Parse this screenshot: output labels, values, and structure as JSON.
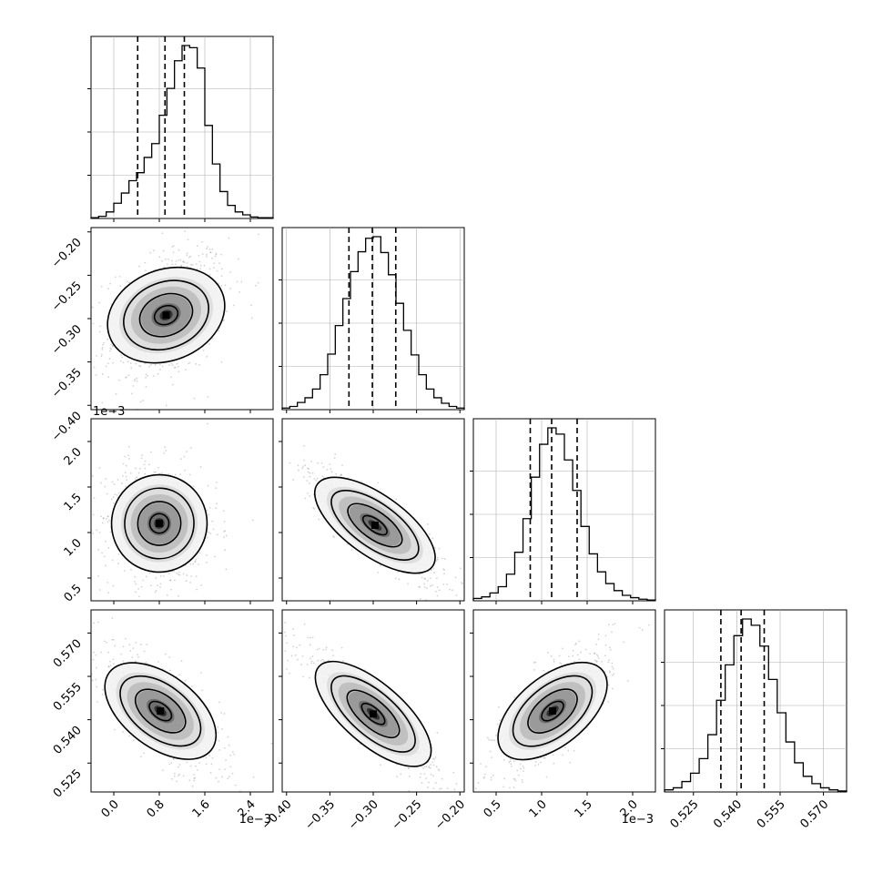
{
  "chart_data": {
    "type": "corner",
    "n_params": 4,
    "params": [
      {
        "name": "",
        "range": [
          -0.4,
          2.8
        ],
        "scale_label": "1e−3",
        "ticks": [
          "0.0",
          "0.8",
          "1.6",
          "2.4"
        ],
        "tick_values": [
          0.0,
          0.8,
          1.6,
          2.4
        ],
        "hist": [
          1,
          3,
          9,
          21,
          35,
          52,
          63,
          84,
          103,
          142,
          179,
          217,
          238,
          235,
          207,
          128,
          75,
          37,
          18,
          9,
          5,
          2,
          1,
          1
        ],
        "quantiles": [
          0.42,
          0.9,
          1.24
        ]
      },
      {
        "name": "",
        "range": [
          -0.405,
          -0.195
        ],
        "ticks": [
          "−0.40",
          "−0.35",
          "−0.30",
          "−0.25",
          "−0.20"
        ],
        "tick_values": [
          -0.4,
          -0.35,
          -0.3,
          -0.25,
          -0.2
        ],
        "hist": [
          2,
          4,
          9,
          15,
          26,
          44,
          70,
          106,
          140,
          174,
          199,
          216,
          218,
          198,
          170,
          134,
          100,
          69,
          44,
          26,
          15,
          8,
          4,
          2
        ],
        "quantiles": [
          -0.328,
          -0.301,
          -0.274
        ]
      },
      {
        "name": "",
        "range": [
          0.25,
          2.25
        ],
        "scale_label": "1e−3",
        "ticks": [
          "0.5",
          "1.0",
          "1.5",
          "2.0"
        ],
        "tick_values": [
          0.5,
          1.0,
          1.5,
          2.0
        ],
        "hist": [
          3,
          5,
          10,
          18,
          34,
          62,
          105,
          158,
          200,
          221,
          213,
          180,
          141,
          95,
          60,
          37,
          22,
          13,
          7,
          4,
          2,
          1
        ],
        "quantiles": [
          0.875,
          1.11,
          1.39
        ]
      },
      {
        "name": "",
        "range": [
          0.515,
          0.578
        ],
        "ticks": [
          "0.525",
          "0.540",
          "0.555",
          "0.570"
        ],
        "tick_values": [
          0.525,
          0.54,
          0.555,
          0.57
        ],
        "hist": [
          2,
          4,
          10,
          18,
          32,
          55,
          88,
          122,
          150,
          166,
          160,
          140,
          108,
          76,
          48,
          28,
          15,
          8,
          4,
          2,
          1
        ],
        "quantiles": [
          0.5345,
          0.5415,
          0.5495
        ]
      }
    ],
    "pair_ticks": {
      "rows": [
        null,
        {
          "labels": [
            "−0.20",
            "−0.25",
            "−0.30",
            "−0.35",
            "−0.40"
          ],
          "values": [
            -0.2,
            -0.25,
            -0.3,
            -0.35,
            -0.4
          ]
        },
        {
          "labels": [
            "2.0",
            "1.5",
            "1.0",
            "0.5"
          ],
          "values": [
            2.0,
            1.5,
            1.0,
            0.5
          ],
          "scale_label": "1e−3"
        },
        {
          "labels": [
            "0.570",
            "0.555",
            "0.540",
            "0.525"
          ],
          "values": [
            0.57,
            0.555,
            0.54,
            0.525
          ]
        }
      ]
    },
    "pairs": [
      {
        "row": 1,
        "col": 0,
        "center": [
          0.92,
          -0.296
        ],
        "sd": [
          0.4,
          0.03
        ],
        "rho": 0.35
      },
      {
        "row": 2,
        "col": 0,
        "center": [
          0.8,
          1.1
        ],
        "sd": [
          0.38,
          0.25
        ],
        "rho": -0.1
      },
      {
        "row": 2,
        "col": 1,
        "center": [
          -0.298,
          1.08
        ],
        "sd": [
          0.03,
          0.24
        ],
        "rho": -0.85
      },
      {
        "row": 3,
        "col": 0,
        "center": [
          0.82,
          0.543
        ],
        "sd": [
          0.4,
          0.0085
        ],
        "rho": -0.7
      },
      {
        "row": 3,
        "col": 1,
        "center": [
          -0.3,
          0.542
        ],
        "sd": [
          0.03,
          0.0085
        ],
        "rho": -0.92
      },
      {
        "row": 3,
        "col": 2,
        "center": [
          1.12,
          0.543
        ],
        "sd": [
          0.24,
          0.0085
        ],
        "rho": 0.72
      }
    ],
    "grid": true,
    "colors": {
      "line": "#000000",
      "scatter": "#808080",
      "grid": "#b0b0b0"
    }
  }
}
